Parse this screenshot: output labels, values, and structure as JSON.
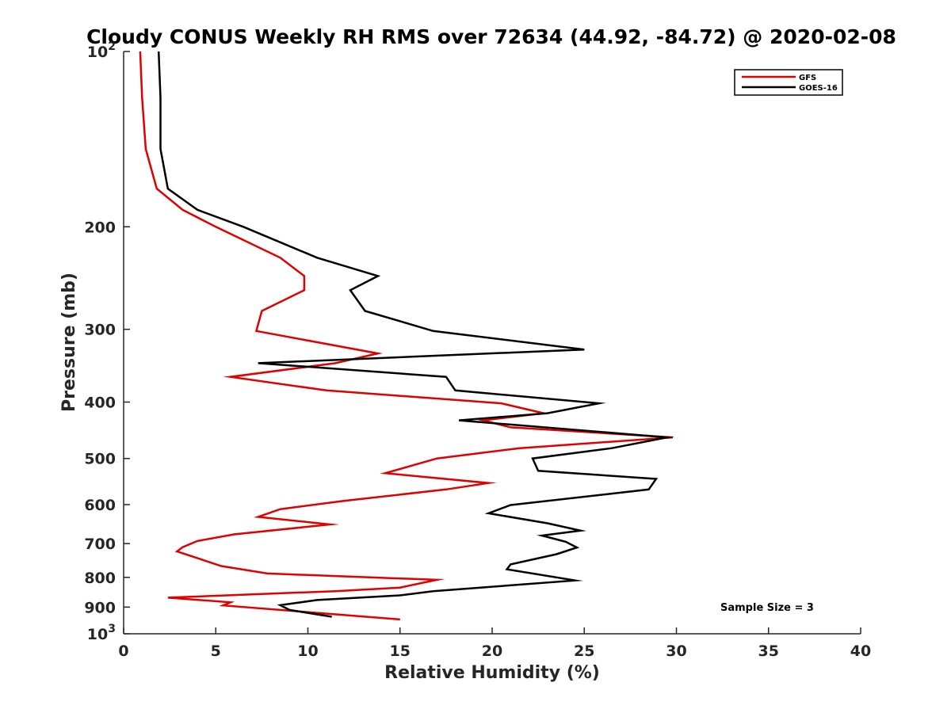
{
  "chart_data": {
    "type": "line",
    "title": "Cloudy CONUS Weekly RH RMS over 72634 (44.92, -84.72) @ 2020-02-08",
    "xlabel": "Relative Humidity (%)",
    "ylabel": "Pressure (mb)",
    "xlim": [
      0,
      40
    ],
    "ylim": [
      100,
      1000
    ],
    "y_scale": "log",
    "y_reversed": true,
    "x_ticks": [
      "0",
      "5",
      "10",
      "15",
      "20",
      "25",
      "30",
      "35",
      "40"
    ],
    "y_ticks": [
      {
        "value": 100,
        "base": "10",
        "exp": "2"
      },
      {
        "value": 200,
        "label": "200"
      },
      {
        "value": 300,
        "label": "300"
      },
      {
        "value": 400,
        "label": "400"
      },
      {
        "value": 500,
        "label": "500"
      },
      {
        "value": 600,
        "label": "600"
      },
      {
        "value": 700,
        "label": "700"
      },
      {
        "value": 800,
        "label": "800"
      },
      {
        "value": 900,
        "label": "900"
      },
      {
        "value": 1000,
        "base": "10",
        "exp": "3"
      }
    ],
    "legend_position": "top-right",
    "grid": false,
    "annotation": "Sample Size = 3",
    "series": [
      {
        "name": "GFS",
        "color": "#e00000",
        "points": [
          [
            0.9,
            100
          ],
          [
            1.0,
            120
          ],
          [
            1.2,
            147
          ],
          [
            1.8,
            172
          ],
          [
            3.2,
            187
          ],
          [
            5.0,
            200
          ],
          [
            8.5,
            226
          ],
          [
            9.8,
            243
          ],
          [
            9.8,
            257
          ],
          [
            7.5,
            279
          ],
          [
            7.2,
            302
          ],
          [
            13.8,
            330
          ],
          [
            11.5,
            343
          ],
          [
            5.8,
            362
          ],
          [
            11.0,
            382
          ],
          [
            20.5,
            402
          ],
          [
            22.8,
            418
          ],
          [
            19.5,
            430
          ],
          [
            21.0,
            442
          ],
          [
            29.8,
            460
          ],
          [
            21.5,
            480
          ],
          [
            17.0,
            500
          ],
          [
            14.2,
            530
          ],
          [
            19.8,
            551
          ],
          [
            17.5,
            565
          ],
          [
            12.0,
            591
          ],
          [
            8.5,
            611
          ],
          [
            7.3,
            630
          ],
          [
            11.2,
            649
          ],
          [
            6.0,
            675
          ],
          [
            4.0,
            693
          ],
          [
            3.2,
            710
          ],
          [
            2.9,
            722
          ],
          [
            5.3,
            765
          ],
          [
            7.8,
            788
          ],
          [
            17.0,
            808
          ],
          [
            15.0,
            833
          ],
          [
            11.5,
            845
          ],
          [
            2.4,
            867
          ],
          [
            5.8,
            883
          ],
          [
            5.4,
            894
          ],
          [
            15.0,
            945
          ]
        ]
      },
      {
        "name": "GOES-16",
        "color": "#000000",
        "points": [
          [
            1.9,
            100
          ],
          [
            2.0,
            120
          ],
          [
            2.0,
            147
          ],
          [
            2.4,
            172
          ],
          [
            4.0,
            187
          ],
          [
            6.5,
            200
          ],
          [
            10.5,
            226
          ],
          [
            13.8,
            243
          ],
          [
            12.3,
            257
          ],
          [
            13.1,
            279
          ],
          [
            16.8,
            302
          ],
          [
            25.0,
            325
          ],
          [
            7.3,
            343
          ],
          [
            17.5,
            362
          ],
          [
            18.0,
            382
          ],
          [
            25.8,
            402
          ],
          [
            23.0,
            418
          ],
          [
            18.2,
            430
          ],
          [
            29.5,
            460
          ],
          [
            26.5,
            480
          ],
          [
            22.2,
            500
          ],
          [
            22.5,
            525
          ],
          [
            28.9,
            542
          ],
          [
            28.5,
            565
          ],
          [
            21.0,
            601
          ],
          [
            19.8,
            621
          ],
          [
            23.0,
            646
          ],
          [
            24.8,
            665
          ],
          [
            22.7,
            678
          ],
          [
            24.0,
            695
          ],
          [
            24.6,
            711
          ],
          [
            23.5,
            730
          ],
          [
            21.0,
            760
          ],
          [
            20.8,
            775
          ],
          [
            24.5,
            810
          ],
          [
            16.8,
            845
          ],
          [
            15.0,
            859
          ],
          [
            10.5,
            875
          ],
          [
            8.5,
            893
          ],
          [
            9.0,
            910
          ],
          [
            11.3,
            935
          ]
        ]
      }
    ]
  }
}
